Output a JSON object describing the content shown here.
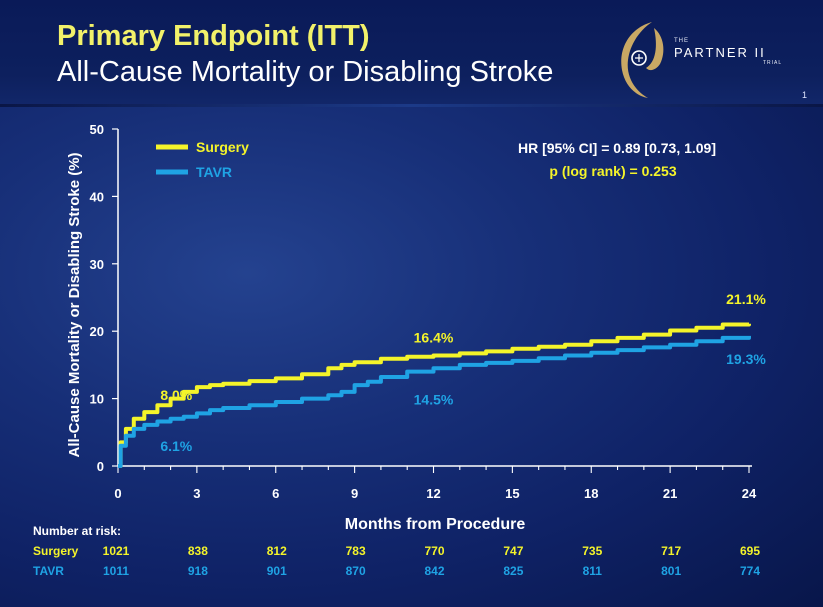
{
  "header": {
    "title": "Primary Endpoint (ITT)",
    "subtitle": "All-Cause Mortality or Disabling Stroke",
    "slide_number": "1"
  },
  "logo": {
    "the": "THE",
    "name": "PARTNER II",
    "trial": "TRIAL"
  },
  "colors": {
    "surgery": "#f4f42a",
    "tavr": "#1fa3e4",
    "background": "#172f78",
    "title": "#f2f16a",
    "axis": "#ffffff"
  },
  "chart_data": {
    "type": "line",
    "xlabel": "Months from Procedure",
    "ylabel": "All-Cause Mortality or Disabling Stroke (%)",
    "xlim": [
      0,
      24
    ],
    "ylim": [
      0,
      50
    ],
    "x_ticks": [
      0,
      3,
      6,
      9,
      12,
      15,
      18,
      21,
      24
    ],
    "y_ticks": [
      0,
      10,
      20,
      30,
      40,
      50
    ],
    "grid": false,
    "legend_position": "top-left",
    "series": [
      {
        "name": "Surgery",
        "color": "#f4f42a",
        "x": [
          0,
          0.1,
          0.3,
          0.6,
          1,
          1.5,
          2,
          2.5,
          3,
          3.5,
          4,
          5,
          6,
          7,
          8,
          8.5,
          9,
          10,
          11,
          12,
          13,
          14,
          15,
          16,
          17,
          18,
          19,
          20,
          21,
          22,
          23,
          24
        ],
        "y": [
          0,
          3.5,
          5.5,
          7.0,
          8.0,
          9.0,
          10.0,
          11.0,
          11.7,
          12.0,
          12.2,
          12.6,
          13.0,
          13.6,
          14.5,
          15.0,
          15.4,
          15.9,
          16.2,
          16.4,
          16.7,
          17.0,
          17.4,
          17.7,
          18.0,
          18.5,
          19.0,
          19.5,
          20.1,
          20.5,
          21.0,
          21.1
        ]
      },
      {
        "name": "TAVR",
        "color": "#1fa3e4",
        "x": [
          0,
          0.1,
          0.3,
          0.6,
          1,
          1.5,
          2,
          2.5,
          3,
          3.5,
          4,
          5,
          6,
          7,
          8,
          8.5,
          9,
          9.5,
          10,
          11,
          12,
          13,
          14,
          15,
          16,
          17,
          18,
          19,
          20,
          21,
          22,
          23,
          24
        ],
        "y": [
          0,
          3.0,
          4.5,
          5.5,
          6.1,
          6.6,
          7.0,
          7.3,
          7.8,
          8.3,
          8.6,
          9.0,
          9.5,
          10.0,
          10.5,
          11.0,
          12.0,
          12.5,
          13.2,
          14.0,
          14.5,
          15.0,
          15.3,
          15.6,
          16.0,
          16.4,
          16.8,
          17.2,
          17.6,
          18.0,
          18.5,
          19.0,
          19.3
        ]
      }
    ],
    "annotations": [
      {
        "text": "8.0%",
        "series": "Surgery",
        "x": 1,
        "y": 8.0
      },
      {
        "text": "6.1%",
        "series": "TAVR",
        "x": 1,
        "y": 6.1
      },
      {
        "text": "16.4%",
        "series": "Surgery",
        "x": 12,
        "y": 16.4
      },
      {
        "text": "14.5%",
        "series": "TAVR",
        "x": 12,
        "y": 14.5
      },
      {
        "text": "21.1%",
        "series": "Surgery",
        "x": 24,
        "y": 21.1
      },
      {
        "text": "19.3%",
        "series": "TAVR",
        "x": 24,
        "y": 19.3
      }
    ],
    "stats": {
      "hr": "HR [95% CI] = 0.89 [0.73, 1.09]",
      "p": "p (log rank) = 0.253"
    }
  },
  "risk_table": {
    "title": "Number at risk:",
    "rows": [
      {
        "label": "Surgery",
        "values": [
          "1021",
          "838",
          "812",
          "783",
          "770",
          "747",
          "735",
          "717",
          "695"
        ]
      },
      {
        "label": "TAVR",
        "values": [
          "1011",
          "918",
          "901",
          "870",
          "842",
          "825",
          "811",
          "801",
          "774"
        ]
      }
    ]
  }
}
